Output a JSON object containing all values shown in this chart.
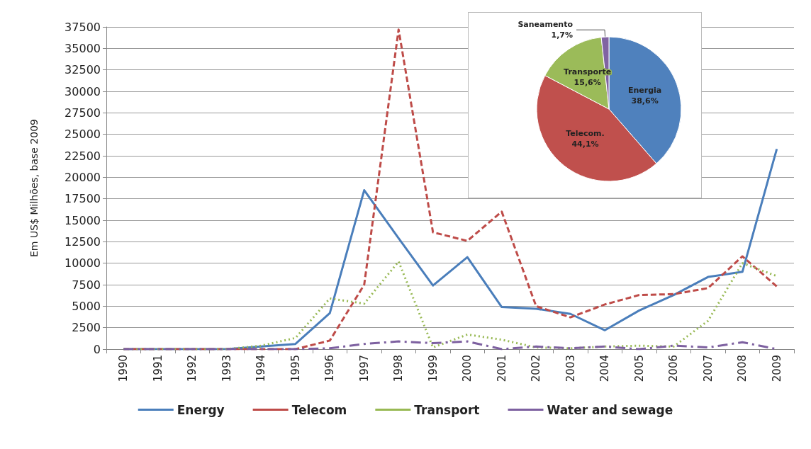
{
  "chart_data": [
    {
      "type": "line",
      "ylabel": "Em US$ Milhões, base 2009",
      "categories": [
        "1990",
        "1991",
        "1992",
        "1993",
        "1994",
        "1995",
        "1996",
        "1997",
        "1998",
        "1999",
        "2000",
        "2001",
        "2002",
        "2003",
        "2004",
        "2005",
        "2006",
        "2007",
        "2008",
        "2009"
      ],
      "series": [
        {
          "name": "Energy",
          "color": "#4a7ebb",
          "line_style": "solid",
          "values": [
            0,
            0,
            0,
            0,
            300,
            600,
            4200,
            18500,
            12900,
            7400,
            10700,
            4900,
            4700,
            4100,
            2200,
            4500,
            6300,
            8400,
            9000,
            23300
          ]
        },
        {
          "name": "Telecom",
          "color": "#be4b48",
          "line_style": "dashed",
          "values": [
            0,
            0,
            0,
            0,
            0,
            0,
            1000,
            7500,
            37200,
            13600,
            12600,
            16000,
            5000,
            3700,
            5200,
            6300,
            6400,
            7100,
            10800,
            7300
          ]
        },
        {
          "name": "Transport",
          "color": "#98b954",
          "line_style": "dotted",
          "values": [
            0,
            0,
            0,
            0,
            400,
            1300,
            5900,
            5300,
            10200,
            200,
            1700,
            1100,
            200,
            100,
            300,
            400,
            300,
            3300,
            10000,
            8500
          ]
        },
        {
          "name": "Water and sewage",
          "color": "#7d60a0",
          "line_style": "dashdot",
          "values": [
            0,
            0,
            0,
            0,
            0,
            0,
            100,
            600,
            900,
            700,
            900,
            0,
            300,
            100,
            300,
            0,
            400,
            200,
            800,
            0
          ]
        }
      ],
      "ylim": [
        0,
        37500
      ],
      "yticks": [
        0,
        2500,
        5000,
        7500,
        10000,
        12500,
        15000,
        17500,
        20000,
        22500,
        25000,
        27500,
        30000,
        32500,
        35000,
        37500
      ],
      "grid": "y",
      "legend": "bottom",
      "marker": "none"
    },
    {
      "type": "pie",
      "categories": [
        "Energia",
        "Telecom.",
        "Transporte",
        "Saneamento"
      ],
      "values": [
        38.6,
        44.1,
        15.6,
        1.7
      ],
      "colors": [
        "#4f81bd",
        "#c0504d",
        "#9bbb59",
        "#8064a2"
      ],
      "value_labels": [
        "38,6%",
        "44,1%",
        "15,6%",
        "1,7%"
      ]
    }
  ]
}
